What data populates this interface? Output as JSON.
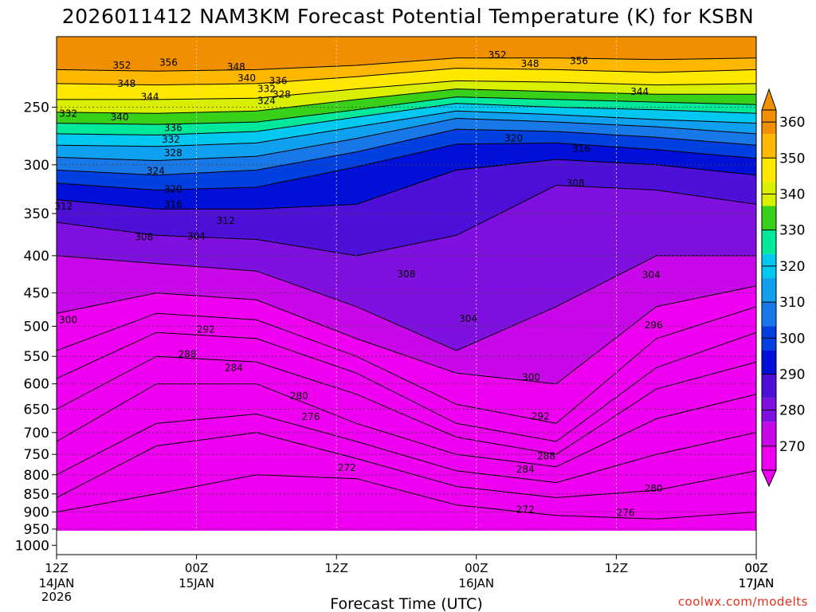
{
  "chart_data": {
    "type": "heatmap",
    "title": "2026011412 NAM3KM Forecast Potential Temperature (K) for KSBN",
    "xlabel": "Forecast Time (UTC)",
    "credit": "coolwx.com/modelts",
    "y_ticks": [
      "250",
      "300",
      "350",
      "400",
      "450",
      "500",
      "550",
      "600",
      "650",
      "700",
      "750",
      "800",
      "850",
      "900",
      "950",
      "1000"
    ],
    "y_tick_values": [
      250,
      300,
      350,
      400,
      450,
      500,
      550,
      600,
      650,
      700,
      750,
      800,
      850,
      900,
      950,
      1000
    ],
    "y_range": [
      200,
      1030
    ],
    "y_scale": "log",
    "x_hours": [
      0,
      12,
      24,
      36,
      48,
      60,
      72
    ],
    "x_ticks": [
      {
        "top": "12Z",
        "mid": "14JAN",
        "bot": "2026"
      },
      {
        "top": "00Z",
        "mid": "15JAN",
        "bot": ""
      },
      {
        "top": "12Z",
        "mid": "",
        "bot": ""
      },
      {
        "top": "00Z",
        "mid": "16JAN",
        "bot": ""
      },
      {
        "top": "12Z",
        "mid": "",
        "bot": ""
      },
      {
        "top": "00Z",
        "mid": "17JAN",
        "bot": ""
      }
    ],
    "x_tick_hours": [
      0,
      12,
      24,
      36,
      48,
      60
    ],
    "colorbar": {
      "levels": [
        360,
        350,
        340,
        330,
        320,
        310,
        300,
        290,
        280,
        270
      ],
      "labels": [
        "360",
        "350",
        "340",
        "330",
        "320",
        "310",
        "300",
        "290",
        "280",
        "270"
      ],
      "colors": [
        "#f09000",
        "#ffb800",
        "#ffe800",
        "#d8f000",
        "#38d018",
        "#00e89a",
        "#00c8f0",
        "#10a0f0",
        "#1878e8",
        "#0040e0",
        "#0010d8",
        "#4e10d8",
        "#8010e0",
        "#c808e8",
        "#f000f0"
      ]
    },
    "series": [
      {
        "level": 352,
        "p": [
          222,
          223,
          222,
          219,
          214,
          214,
          215,
          214
        ]
      },
      {
        "level": 348,
        "p": [
          232,
          233,
          232,
          227,
          221,
          222,
          224,
          222
        ]
      },
      {
        "level": 344,
        "p": [
          244,
          244,
          243,
          236,
          230,
          231,
          233,
          232
        ]
      },
      {
        "level": 340,
        "p": [
          254,
          255,
          253,
          244,
          236,
          238,
          240,
          240
        ]
      },
      {
        "level": 336,
        "p": [
          263,
          264,
          262,
          252,
          242,
          244,
          246,
          248
        ]
      },
      {
        "level": 332,
        "p": [
          272,
          273,
          270,
          258,
          247,
          250,
          252,
          255
        ]
      },
      {
        "level": 328,
        "p": [
          282,
          283,
          280,
          266,
          253,
          256,
          260,
          263
        ]
      },
      {
        "level": 324,
        "p": [
          293,
          296,
          292,
          276,
          259,
          262,
          266,
          272
        ]
      },
      {
        "level": 320,
        "p": [
          305,
          310,
          305,
          288,
          268,
          270,
          275,
          282
        ]
      },
      {
        "level": 316,
        "p": [
          318,
          325,
          322,
          302,
          281,
          280,
          286,
          294
        ]
      },
      {
        "level": 312,
        "p": [
          335,
          345,
          345,
          340,
          305,
          295,
          300,
          310
        ]
      },
      {
        "level": 308,
        "p": [
          360,
          375,
          380,
          400,
          375,
          320,
          325,
          340
        ]
      },
      {
        "level": 304,
        "p": [
          400,
          410,
          420,
          470,
          540,
          470,
          400,
          400
        ]
      },
      {
        "level": 300,
        "p": [
          480,
          450,
          460,
          520,
          580,
          600,
          470,
          440
        ]
      },
      {
        "level": 296,
        "p": [
          540,
          480,
          490,
          550,
          640,
          680,
          520,
          470
        ]
      },
      {
        "level": 292,
        "p": [
          590,
          510,
          520,
          580,
          680,
          720,
          570,
          510
        ]
      },
      {
        "level": 288,
        "p": [
          650,
          550,
          560,
          620,
          710,
          750,
          610,
          560
        ]
      },
      {
        "level": 284,
        "p": [
          720,
          600,
          600,
          680,
          750,
          780,
          670,
          620
        ]
      },
      {
        "level": 280,
        "p": [
          800,
          680,
          660,
          720,
          790,
          820,
          750,
          700
        ]
      },
      {
        "level": 276,
        "p": [
          860,
          730,
          700,
          760,
          830,
          860,
          840,
          790
        ]
      },
      {
        "level": 272,
        "p": [
          900,
          850,
          800,
          810,
          880,
          910,
          920,
          900
        ]
      }
    ],
    "contour_labels": [
      {
        "text": "352",
        "h": 5.6,
        "p": 219
      },
      {
        "text": "356",
        "h": 9.6,
        "p": 217
      },
      {
        "text": "348",
        "h": 15.4,
        "p": 220
      },
      {
        "text": "340",
        "h": 16.3,
        "p": 228
      },
      {
        "text": "352",
        "h": 37.8,
        "p": 212
      },
      {
        "text": "348",
        "h": 40.6,
        "p": 218
      },
      {
        "text": "356",
        "h": 44.8,
        "p": 216
      },
      {
        "text": "348",
        "h": 6.0,
        "p": 232
      },
      {
        "text": "344",
        "h": 8.0,
        "p": 242
      },
      {
        "text": "340",
        "h": 5.4,
        "p": 258
      },
      {
        "text": "332",
        "h": 1.0,
        "p": 255
      },
      {
        "text": "336",
        "h": 19.0,
        "p": 230
      },
      {
        "text": "332",
        "h": 18.0,
        "p": 236
      },
      {
        "text": "328",
        "h": 19.3,
        "p": 240
      },
      {
        "text": "324",
        "h": 18.0,
        "p": 245
      },
      {
        "text": "344",
        "h": 50.0,
        "p": 238
      },
      {
        "text": "336",
        "h": 10.0,
        "p": 267
      },
      {
        "text": "332",
        "h": 9.8,
        "p": 277
      },
      {
        "text": "328",
        "h": 10.0,
        "p": 289
      },
      {
        "text": "324",
        "h": 8.5,
        "p": 306
      },
      {
        "text": "320",
        "h": 10.0,
        "p": 324
      },
      {
        "text": "316",
        "h": 10.0,
        "p": 340
      },
      {
        "text": "312",
        "h": 14.5,
        "p": 358
      },
      {
        "text": "312",
        "h": 0.6,
        "p": 342
      },
      {
        "text": "320",
        "h": 39.2,
        "p": 276
      },
      {
        "text": "316",
        "h": 45.0,
        "p": 285
      },
      {
        "text": "308",
        "h": 44.5,
        "p": 318
      },
      {
        "text": "308",
        "h": 7.5,
        "p": 377
      },
      {
        "text": "304",
        "h": 12.0,
        "p": 376
      },
      {
        "text": "308",
        "h": 30.0,
        "p": 424
      },
      {
        "text": "304",
        "h": 35.3,
        "p": 488
      },
      {
        "text": "304",
        "h": 51.0,
        "p": 425
      },
      {
        "text": "300",
        "h": 1.0,
        "p": 490
      },
      {
        "text": "292",
        "h": 12.8,
        "p": 505
      },
      {
        "text": "296",
        "h": 51.2,
        "p": 498
      },
      {
        "text": "288",
        "h": 11.2,
        "p": 546
      },
      {
        "text": "284",
        "h": 15.2,
        "p": 570
      },
      {
        "text": "300",
        "h": 40.7,
        "p": 588
      },
      {
        "text": "280",
        "h": 20.8,
        "p": 624
      },
      {
        "text": "276",
        "h": 21.8,
        "p": 666
      },
      {
        "text": "292",
        "h": 41.5,
        "p": 665
      },
      {
        "text": "272",
        "h": 24.9,
        "p": 782
      },
      {
        "text": "288",
        "h": 42.0,
        "p": 754
      },
      {
        "text": "284",
        "h": 40.2,
        "p": 786
      },
      {
        "text": "280",
        "h": 51.2,
        "p": 835
      },
      {
        "text": "272",
        "h": 40.2,
        "p": 893
      },
      {
        "text": "276",
        "h": 48.8,
        "p": 902
      }
    ]
  }
}
